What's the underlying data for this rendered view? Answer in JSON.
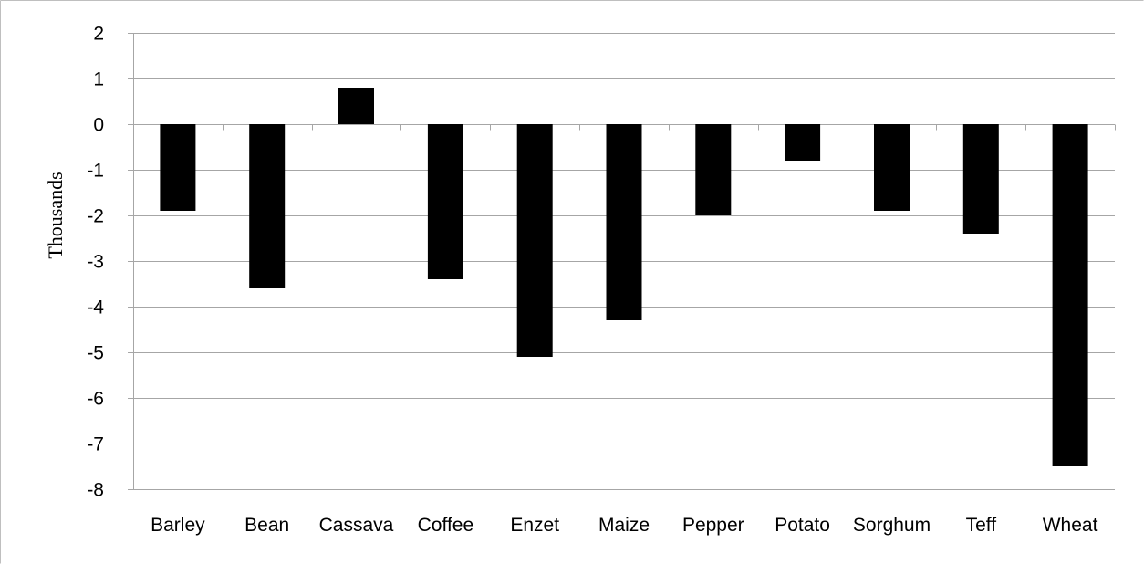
{
  "chart_data": {
    "type": "bar",
    "categories": [
      "Barley",
      "Bean",
      "Cassava",
      "Coffee",
      "Enzet",
      "Maize",
      "Pepper",
      "Potato",
      "Sorghum",
      "Teff",
      "Wheat"
    ],
    "values": [
      -1.9,
      -3.6,
      0.8,
      -3.4,
      -5.1,
      -4.3,
      -2.0,
      -0.8,
      -1.9,
      -2.4,
      -7.5
    ],
    "ylabel": "Thousands",
    "ylim": [
      -8,
      2
    ],
    "yticks": [
      2,
      1,
      0,
      -1,
      -2,
      -3,
      -4,
      -5,
      -6,
      -7,
      -8
    ],
    "grid": true,
    "bar_color": "#000000"
  }
}
